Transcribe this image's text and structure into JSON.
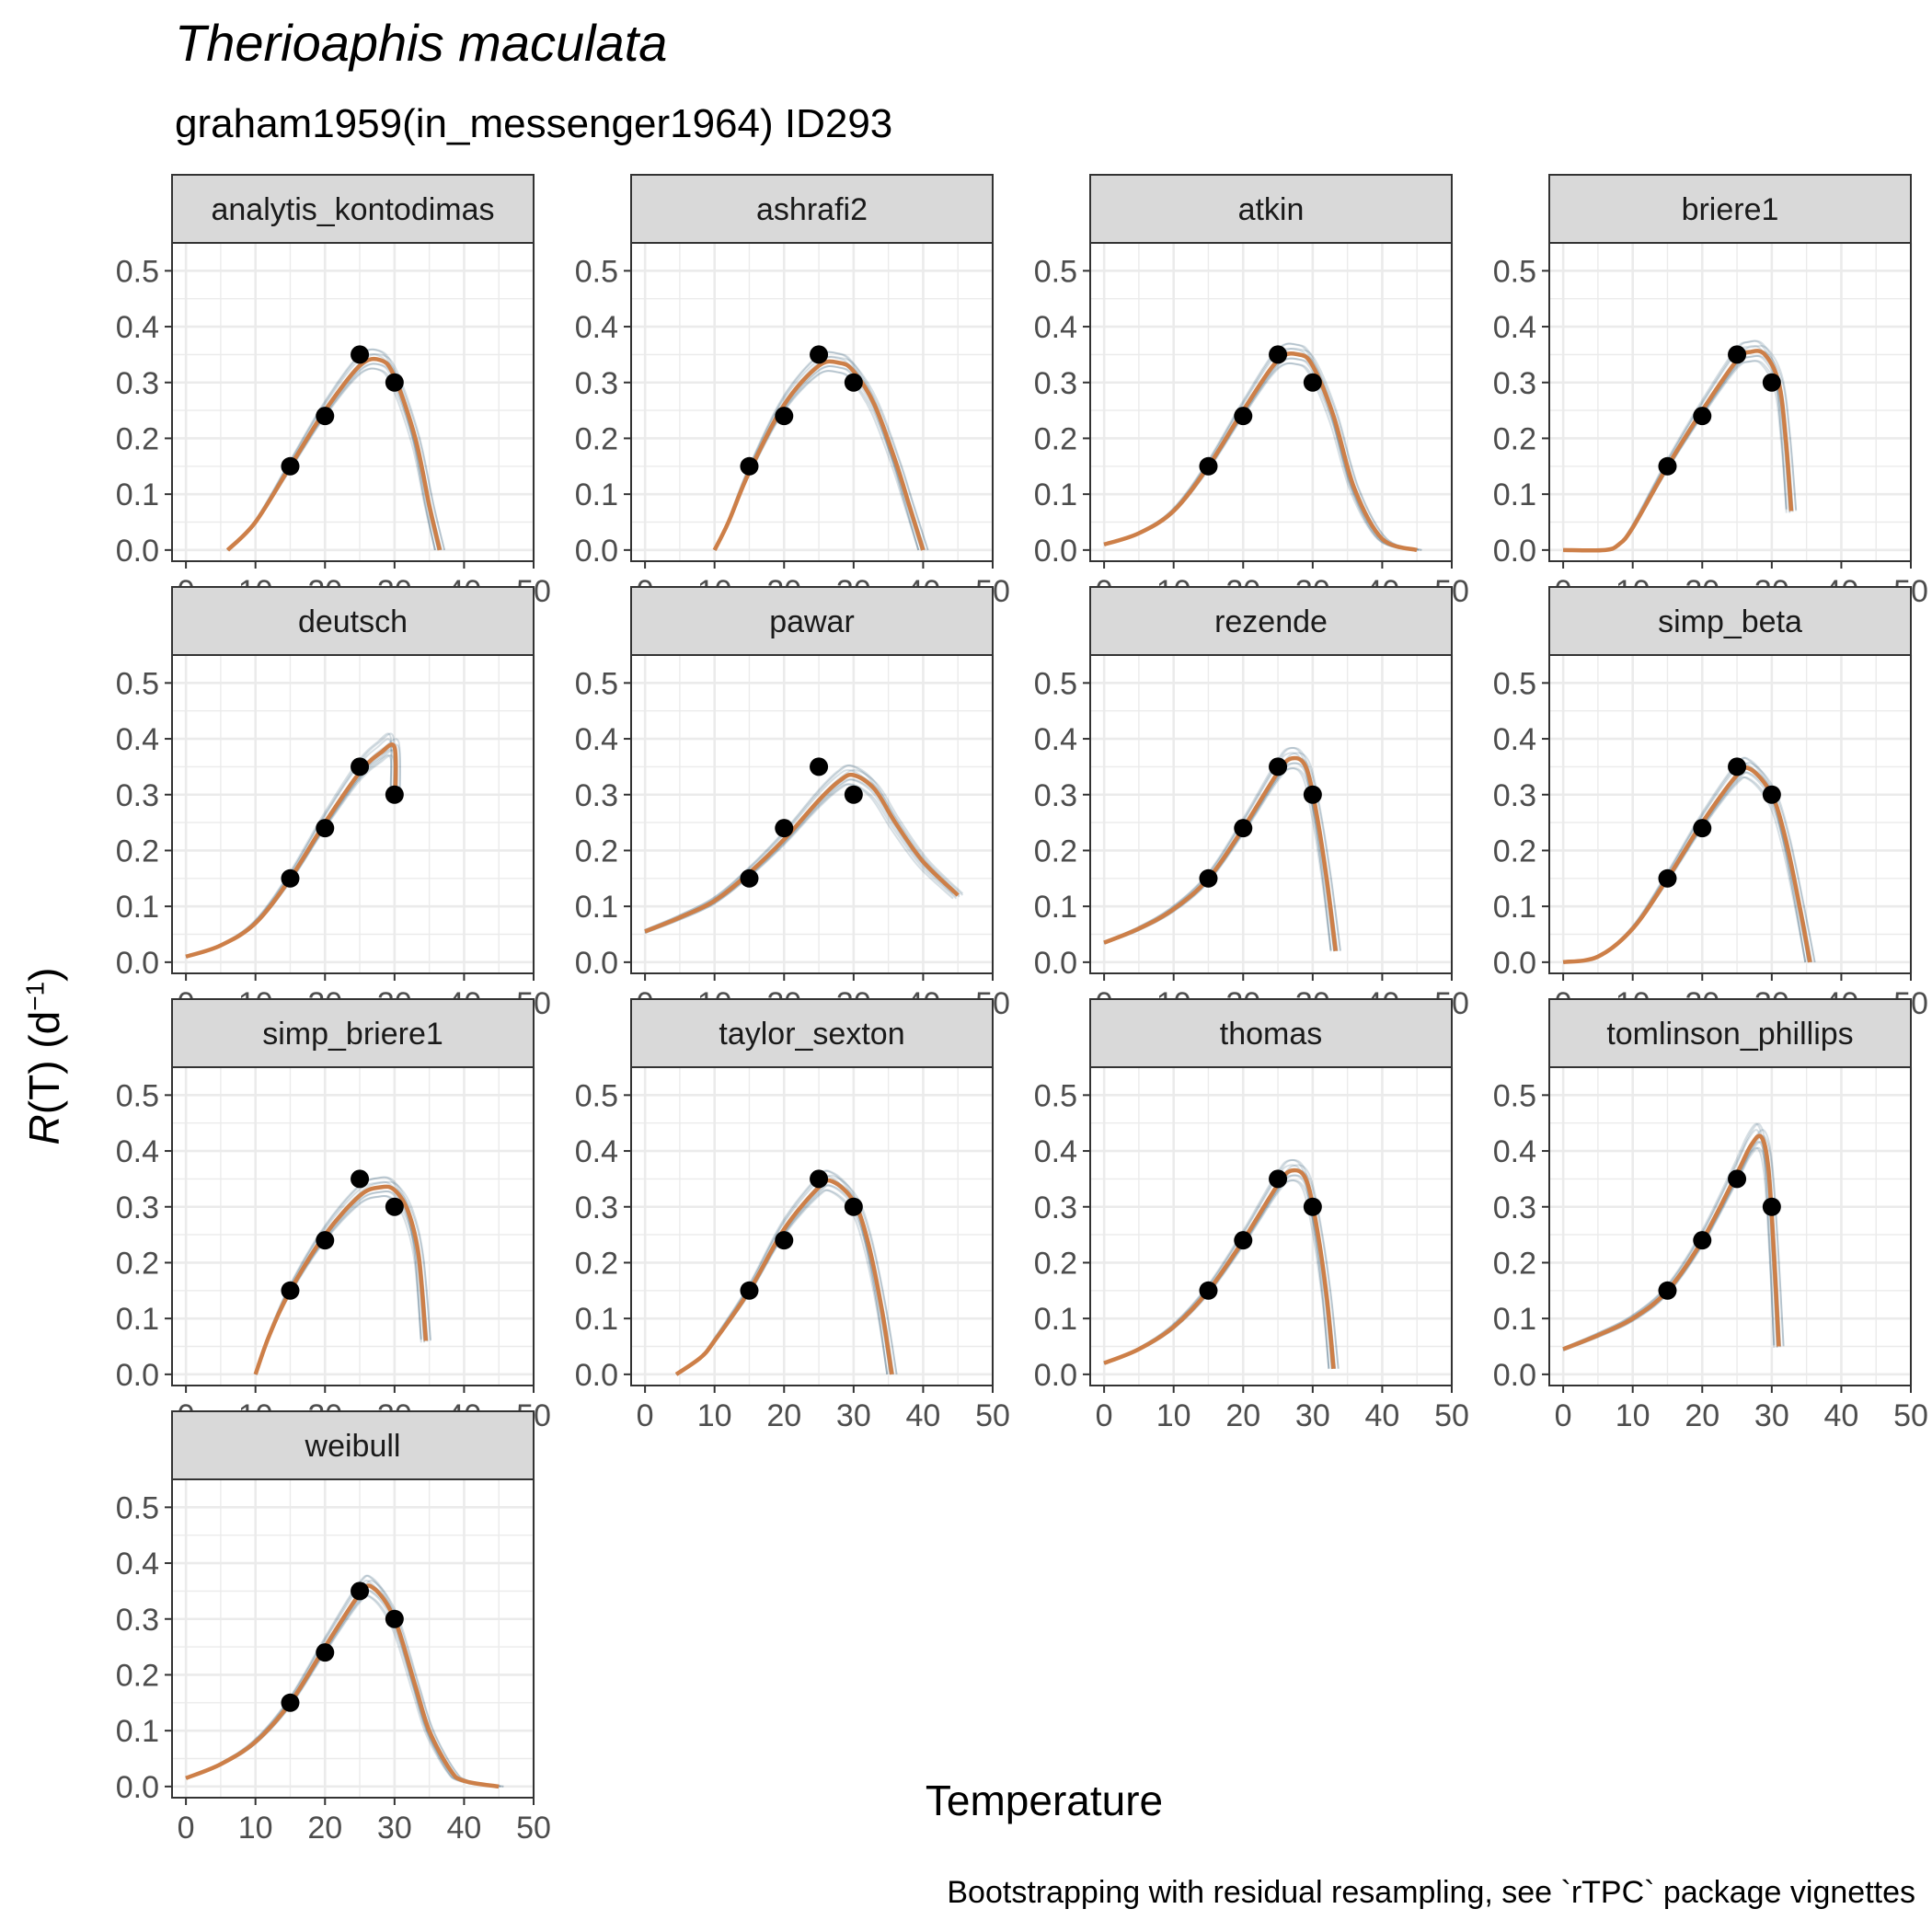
{
  "title": "Therioaphis maculata",
  "subtitle": "graham1959(in_messenger1964) ID293",
  "xlabel": "Temperature",
  "ylabel": {
    "italic_part": "R",
    "rest": "(T) (d",
    "superscript": "−1",
    "close": ")"
  },
  "caption": "Bootstrapping with residual resampling, see `rTPC` package vignettes",
  "colors": {
    "fit": "#CD7F48",
    "bootstrap": "#1F4E6B",
    "points": "#000000",
    "strip_fill": "#D9D9D9",
    "grid": "#EBEBEB",
    "panel_border": "#333333",
    "tick_text": "#4D4D4D"
  },
  "chart_data": {
    "type": "line",
    "layout": "faceted 4 columns",
    "xlim": [
      -2,
      50
    ],
    "ylim": [
      -0.02,
      0.55
    ],
    "x_ticks": [
      0,
      10,
      20,
      30,
      40,
      50
    ],
    "y_ticks": [
      0.0,
      0.1,
      0.2,
      0.3,
      0.4,
      0.5
    ],
    "y_tick_labels": [
      "0.0",
      "0.1",
      "0.2",
      "0.3",
      "0.4",
      "0.5"
    ],
    "grid": true,
    "observed_points": {
      "x": [
        15,
        20,
        25,
        30
      ],
      "y": [
        0.15,
        0.24,
        0.35,
        0.3
      ]
    },
    "panels": [
      {
        "name": "analytis_kontodimas",
        "fit": {
          "x": [
            6,
            10,
            15,
            20,
            25,
            28,
            30,
            33,
            35,
            36.5
          ],
          "y": [
            0.0,
            0.05,
            0.15,
            0.25,
            0.33,
            0.34,
            0.31,
            0.2,
            0.08,
            0.0
          ]
        }
      },
      {
        "name": "ashrafi2",
        "fit": {
          "x": [
            10,
            12,
            15,
            20,
            25,
            28,
            30,
            33,
            36,
            38,
            40
          ],
          "y": [
            0.0,
            0.05,
            0.14,
            0.26,
            0.33,
            0.335,
            0.32,
            0.26,
            0.16,
            0.08,
            0.0
          ]
        }
      },
      {
        "name": "atkin",
        "fit": {
          "x": [
            0,
            5,
            10,
            15,
            20,
            25,
            28,
            30,
            33,
            36,
            40,
            45
          ],
          "y": [
            0.01,
            0.03,
            0.07,
            0.15,
            0.25,
            0.34,
            0.35,
            0.33,
            0.24,
            0.11,
            0.02,
            0.0
          ]
        }
      },
      {
        "name": "briere1",
        "fit": {
          "x": [
            0,
            6,
            8,
            10,
            15,
            20,
            25,
            27,
            29,
            31,
            32,
            32.8
          ],
          "y": [
            0.0,
            0.0,
            0.01,
            0.04,
            0.15,
            0.25,
            0.34,
            0.355,
            0.35,
            0.3,
            0.2,
            0.07
          ]
        }
      },
      {
        "name": "deutsch",
        "fit": {
          "x": [
            0,
            5,
            10,
            15,
            20,
            25,
            28,
            30,
            30.1
          ],
          "y": [
            0.01,
            0.03,
            0.07,
            0.15,
            0.25,
            0.34,
            0.375,
            0.385,
            0.3
          ]
        }
      },
      {
        "name": "pawar",
        "fit": {
          "x": [
            0,
            5,
            10,
            15,
            20,
            25,
            28,
            30,
            33,
            36,
            40,
            45
          ],
          "y": [
            0.055,
            0.08,
            0.11,
            0.16,
            0.22,
            0.29,
            0.325,
            0.335,
            0.31,
            0.25,
            0.18,
            0.12
          ]
        }
      },
      {
        "name": "rezende",
        "fit": {
          "x": [
            0,
            5,
            10,
            15,
            20,
            25,
            27,
            29,
            30.5,
            32,
            33.3
          ],
          "y": [
            0.035,
            0.06,
            0.095,
            0.15,
            0.24,
            0.34,
            0.365,
            0.35,
            0.27,
            0.15,
            0.02
          ]
        }
      },
      {
        "name": "simp_beta",
        "fit": {
          "x": [
            0,
            5,
            10,
            15,
            20,
            25,
            27,
            30,
            32,
            34,
            35.5
          ],
          "y": [
            0.0,
            0.01,
            0.06,
            0.15,
            0.25,
            0.335,
            0.345,
            0.3,
            0.22,
            0.1,
            0.0
          ]
        }
      },
      {
        "name": "simp_briere1",
        "fit": {
          "x": [
            10,
            12,
            15,
            20,
            25,
            28,
            30,
            32,
            33.5,
            34.5
          ],
          "y": [
            0.0,
            0.07,
            0.15,
            0.25,
            0.32,
            0.335,
            0.33,
            0.29,
            0.21,
            0.06
          ]
        }
      },
      {
        "name": "taylor_sexton",
        "fit": {
          "x": [
            4.5,
            8,
            10,
            15,
            20,
            25,
            27,
            30,
            32,
            34,
            35.5
          ],
          "y": [
            0.0,
            0.03,
            0.06,
            0.15,
            0.26,
            0.335,
            0.345,
            0.31,
            0.24,
            0.12,
            0.0
          ]
        }
      },
      {
        "name": "thomas",
        "fit": {
          "x": [
            0,
            5,
            10,
            15,
            20,
            25,
            27,
            29,
            30.5,
            32,
            33
          ],
          "y": [
            0.02,
            0.045,
            0.085,
            0.15,
            0.24,
            0.34,
            0.365,
            0.35,
            0.27,
            0.14,
            0.01
          ]
        }
      },
      {
        "name": "tomlinson_phillips",
        "fit": {
          "x": [
            0,
            5,
            10,
            15,
            20,
            25,
            27,
            28.5,
            29.5,
            30.3,
            31
          ],
          "y": [
            0.045,
            0.07,
            0.1,
            0.15,
            0.24,
            0.36,
            0.41,
            0.425,
            0.37,
            0.22,
            0.05
          ]
        }
      },
      {
        "name": "weibull",
        "fit": {
          "x": [
            0,
            5,
            10,
            15,
            20,
            25,
            27,
            30,
            33,
            35,
            38,
            40,
            45
          ],
          "y": [
            0.015,
            0.04,
            0.08,
            0.15,
            0.25,
            0.345,
            0.355,
            0.3,
            0.18,
            0.1,
            0.03,
            0.01,
            0.0
          ]
        }
      }
    ]
  }
}
